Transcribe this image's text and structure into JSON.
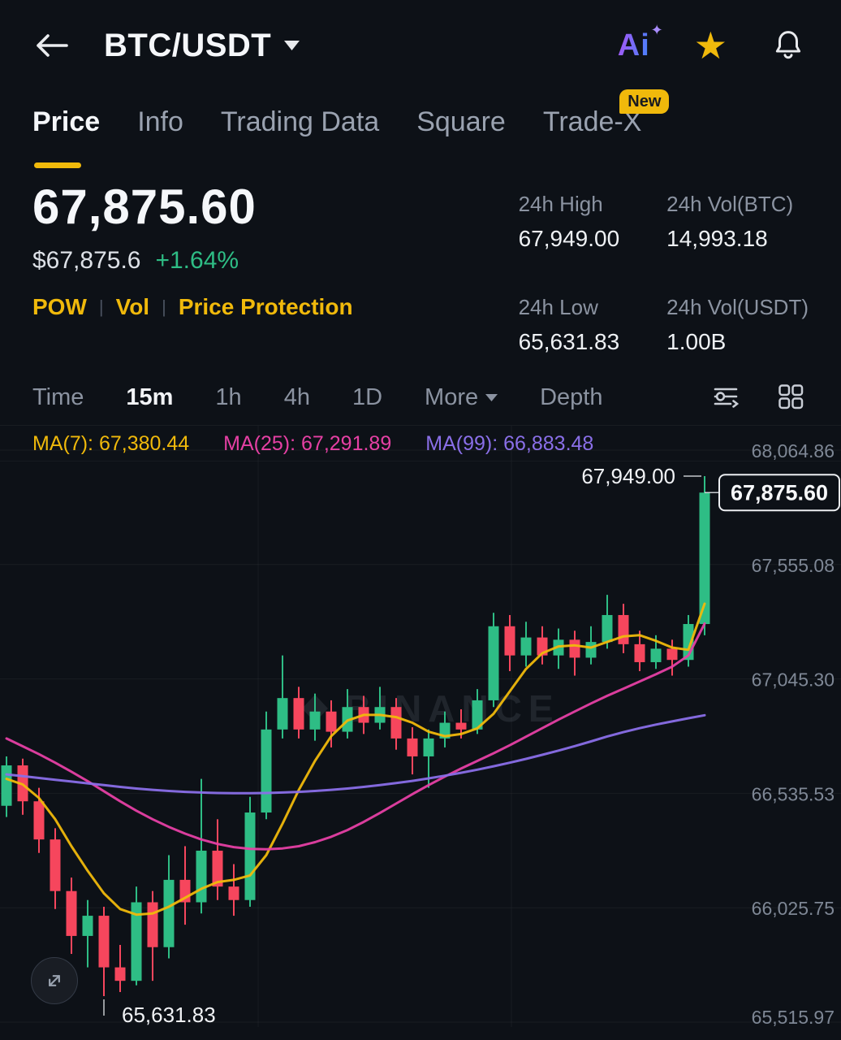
{
  "topbar": {
    "title": "BTC/USDT",
    "ai_label": "Ai"
  },
  "icons": {
    "star": "★",
    "sparkle": "✦"
  },
  "tabs": {
    "items": [
      {
        "label": "Price",
        "active": true
      },
      {
        "label": "Info",
        "active": false
      },
      {
        "label": "Trading Data",
        "active": false
      },
      {
        "label": "Square",
        "active": false
      },
      {
        "label": "Trade-X",
        "active": false
      }
    ],
    "new_badge": "New"
  },
  "price": {
    "last": "67,875.60",
    "fiat": "$67,875.6",
    "change": "+1.64%",
    "tag_separator": "|",
    "tags": [
      "POW",
      "Vol",
      "Price Protection"
    ]
  },
  "stats": [
    {
      "label": "24h High",
      "value": "67,949.00"
    },
    {
      "label": "24h Vol(BTC)",
      "value": "14,993.18"
    },
    {
      "label": "24h Low",
      "value": "65,631.83"
    },
    {
      "label": "24h Vol(USDT)",
      "value": "1.00B"
    }
  ],
  "intervals": {
    "items": [
      "Time",
      "15m",
      "1h",
      "4h",
      "1D",
      "More",
      "Depth"
    ],
    "active": "15m"
  },
  "chart_data": {
    "type": "candlestick",
    "symbol": "BTC/USDT",
    "interval": "15m",
    "colors": {
      "up": "#2ebd85",
      "down": "#f6465d",
      "grid": "#ffffff",
      "axis_text": "#7e8795"
    },
    "watermark": "BINANCE",
    "y_axis": {
      "ticks": [
        {
          "price": 68064.86,
          "label": "68,064.86"
        },
        {
          "price": 67555.08,
          "label": "67,555.08"
        },
        {
          "price": 67045.3,
          "label": "67,045.30"
        },
        {
          "price": 66535.53,
          "label": "66,535.53"
        },
        {
          "price": 66025.75,
          "label": "66,025.75"
        },
        {
          "price": 65515.97,
          "label": "65,515.97"
        }
      ]
    },
    "x_grid": [
      318,
      630
    ],
    "series": [
      {
        "name": "MA(7)",
        "legend": "MA(7): 67,380.44",
        "color": "#f0b90b",
        "values": [
          66600,
          66575,
          66515,
          66420,
          66300,
          66190,
          66090,
          66020,
          65995,
          66000,
          66030,
          66070,
          66110,
          66140,
          66150,
          66170,
          66260,
          66400,
          66550,
          66680,
          66790,
          66860,
          66885,
          66885,
          66875,
          66850,
          66810,
          66790,
          66800,
          66825,
          66890,
          66990,
          67090,
          67160,
          67190,
          67195,
          67185,
          67210,
          67235,
          67240,
          67215,
          67185,
          67175,
          67380.44
        ]
      },
      {
        "name": "MA(25)",
        "legend": "MA(25): 67,291.89",
        "color": "#e640a4",
        "values": [
          66780,
          66745,
          66710,
          66672,
          66632,
          66590,
          66545,
          66500,
          66458,
          66420,
          66386,
          66356,
          66330,
          66310,
          66296,
          66288,
          66286,
          66290,
          66300,
          66318,
          66342,
          66372,
          66408,
          66448,
          66490,
          66532,
          66572,
          66610,
          66646,
          66680,
          66714,
          66750,
          66788,
          66826,
          66864,
          66900,
          66936,
          66970,
          67002,
          67034,
          67066,
          67100,
          67150,
          67291.89
        ]
      },
      {
        "name": "MA(99)",
        "legend": "MA(99): 66,883.48",
        "color": "#8a6fe8",
        "values": [
          66620,
          66612,
          66604,
          66596,
          66588,
          66580,
          66572,
          66564,
          66557,
          66551,
          66546,
          66542,
          66539,
          66537,
          66536,
          66536,
          66537,
          66539,
          66542,
          66546,
          66551,
          66557,
          66564,
          66572,
          66581,
          66591,
          66602,
          66614,
          66627,
          66641,
          66656,
          66672,
          66689,
          66707,
          66726,
          66746,
          66767,
          66789,
          66808,
          66826,
          66842,
          66856,
          66870,
          66883.48
        ]
      }
    ],
    "candle_format": [
      "open",
      "high",
      "low",
      "close"
    ],
    "candles": [
      [
        66480,
        66700,
        66430,
        66660
      ],
      [
        66660,
        66690,
        66440,
        66500
      ],
      [
        66500,
        66560,
        66270,
        66330
      ],
      [
        66330,
        66380,
        66020,
        66100
      ],
      [
        66100,
        66160,
        65820,
        65900
      ],
      [
        65900,
        66060,
        65760,
        65990
      ],
      [
        65990,
        66030,
        65631.83,
        65760
      ],
      [
        65760,
        65860,
        65650,
        65700
      ],
      [
        65700,
        66120,
        65680,
        66050
      ],
      [
        66050,
        66100,
        65700,
        65850
      ],
      [
        65850,
        66260,
        65800,
        66150
      ],
      [
        66150,
        66300,
        65950,
        66050
      ],
      [
        66050,
        66600,
        66000,
        66280
      ],
      [
        66280,
        66420,
        66060,
        66120
      ],
      [
        66120,
        66220,
        65990,
        66060
      ],
      [
        66060,
        66520,
        66030,
        66450
      ],
      [
        66450,
        66900,
        66420,
        66820
      ],
      [
        66820,
        67150,
        66780,
        66960
      ],
      [
        66960,
        67010,
        66780,
        66820
      ],
      [
        66820,
        66980,
        66770,
        66900
      ],
      [
        66900,
        66950,
        66740,
        66810
      ],
      [
        66810,
        67000,
        66780,
        66920
      ],
      [
        66920,
        66970,
        66800,
        66850
      ],
      [
        66850,
        67010,
        66820,
        66920
      ],
      [
        66920,
        66960,
        66730,
        66780
      ],
      [
        66780,
        66830,
        66620,
        66700
      ],
      [
        66700,
        66820,
        66560,
        66780
      ],
      [
        66780,
        66900,
        66740,
        66850
      ],
      [
        66850,
        66910,
        66780,
        66820
      ],
      [
        66820,
        67000,
        66800,
        66950
      ],
      [
        66950,
        67340,
        66920,
        67280
      ],
      [
        67280,
        67330,
        67080,
        67150
      ],
      [
        67150,
        67300,
        67100,
        67230
      ],
      [
        67230,
        67280,
        67110,
        67150
      ],
      [
        67150,
        67270,
        67090,
        67220
      ],
      [
        67220,
        67260,
        67060,
        67140
      ],
      [
        67140,
        67280,
        67110,
        67210
      ],
      [
        67210,
        67420,
        67180,
        67330
      ],
      [
        67330,
        67380,
        67160,
        67200
      ],
      [
        67200,
        67260,
        67080,
        67120
      ],
      [
        67120,
        67240,
        67090,
        67180
      ],
      [
        67180,
        67220,
        67060,
        67130
      ],
      [
        67130,
        67330,
        67100,
        67290
      ],
      [
        67290,
        67949.0,
        67240,
        67875.6
      ]
    ],
    "annotations": {
      "high": {
        "label": "67,949.00",
        "price": 67949.0,
        "candle_index": 43
      },
      "low": {
        "label": "65,631.83",
        "price": 65631.83,
        "candle_index": 6
      },
      "last": {
        "label": "67,875.60",
        "price": 67875.6
      }
    }
  }
}
